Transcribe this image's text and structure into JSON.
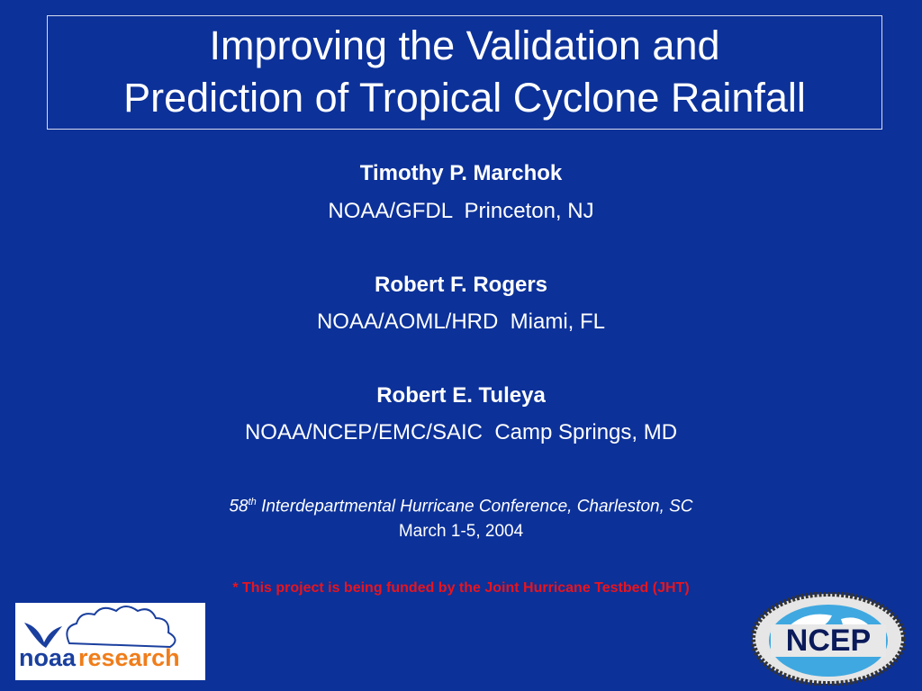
{
  "title": {
    "lines": [
      "Improving the Validation and",
      "Prediction of Tropical Cyclone Rainfall"
    ]
  },
  "authors": [
    {
      "name": "Timothy P. Marchok",
      "affiliation": "NOAA/GFDL  Princeton, NJ"
    },
    {
      "name": "Robert F. Rogers",
      "affiliation": "NOAA/AOML/HRD  Miami, FL"
    },
    {
      "name": "Robert E. Tuleya",
      "affiliation": "NOAA/NCEP/EMC/SAIC  Camp Springs, MD"
    }
  ],
  "conference": {
    "number": "58",
    "suffix": "th",
    "text": "Interdepartmental Hurricane Conference, Charleston, SC",
    "date": "March 1-5, 2004"
  },
  "funding_note": "* This project is being funded by the Joint Hurricane Testbed (JHT)",
  "logos": {
    "noaa": "noaa",
    "research": "research",
    "ncep": "NCEP"
  }
}
